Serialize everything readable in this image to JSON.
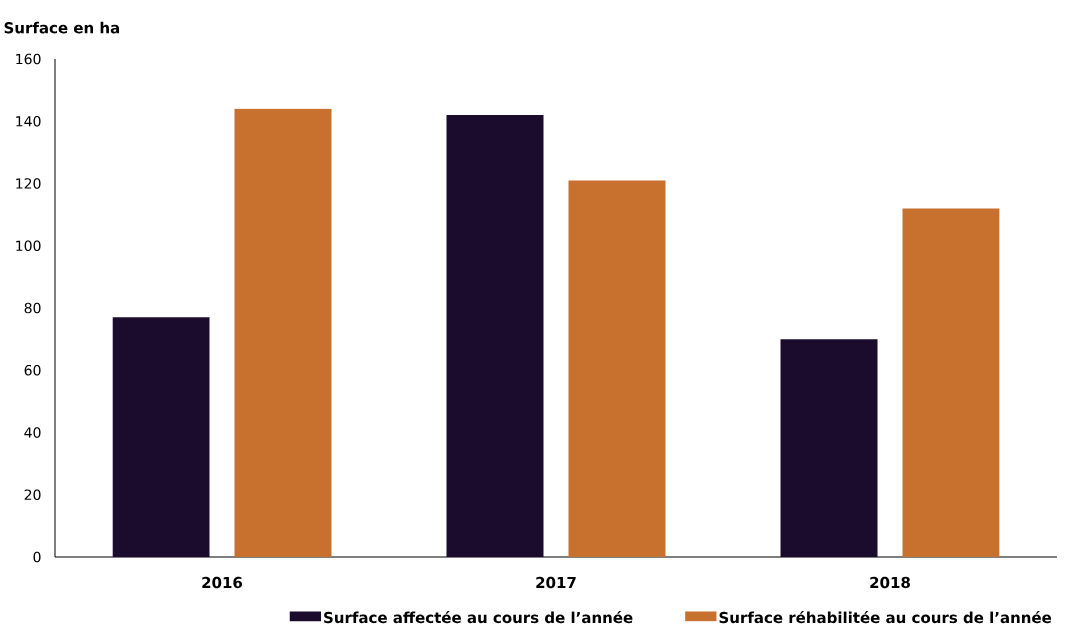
{
  "chart_data": {
    "type": "bar",
    "ylabel": "Surface en ha",
    "categories": [
      "2016",
      "2017",
      "2018"
    ],
    "series": [
      {
        "name": "Surface affectée au cours de l’année",
        "color": "#1b0c2e",
        "values": [
          77,
          142,
          70
        ]
      },
      {
        "name": "Surface réhabilitée au cours de l’année",
        "color": "#c8702e",
        "values": [
          144,
          121,
          112
        ]
      }
    ],
    "ylim": [
      0,
      160
    ],
    "yticks": [
      0,
      20,
      40,
      60,
      80,
      100,
      120,
      140,
      160
    ],
    "legend": "bottom"
  }
}
